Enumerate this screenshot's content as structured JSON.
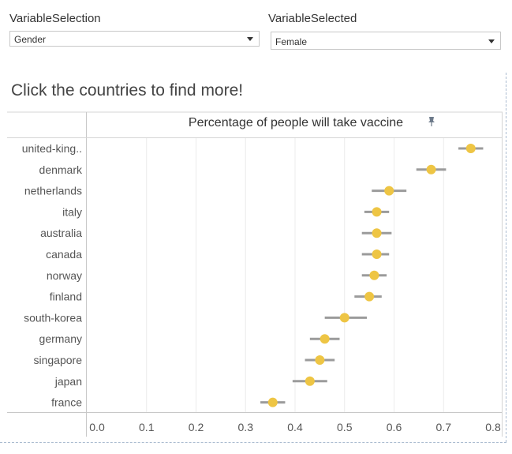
{
  "filters": {
    "variable_selection": {
      "label": "VariableSelection",
      "value": "Gender"
    },
    "variable_selected": {
      "label": "VariableSelected",
      "value": "Female"
    }
  },
  "subtitle": "Click the countries to find more!",
  "colors": {
    "point": "#eec544",
    "error_bar": "#9b9b9b",
    "grid": "#ececec",
    "axis": "#c8c8c8",
    "text": "#555555"
  },
  "icons": {
    "pin": "pin-icon",
    "dropdown": "chevron-down-icon"
  },
  "chart_data": {
    "type": "scatter",
    "title": "Percentage of people will take vaccine",
    "xlim": [
      0,
      0.8
    ],
    "x_ticks": [
      "0.0",
      "0.1",
      "0.2",
      "0.3",
      "0.4",
      "0.5",
      "0.6",
      "0.7",
      "0.8"
    ],
    "grid": true,
    "categories": [
      "united-king..",
      "denmark",
      "netherlands",
      "italy",
      "australia",
      "canada",
      "norway",
      "finland",
      "south-korea",
      "germany",
      "singapore",
      "japan",
      "france"
    ],
    "values": [
      0.755,
      0.675,
      0.59,
      0.565,
      0.565,
      0.565,
      0.56,
      0.55,
      0.5,
      0.46,
      0.45,
      0.43,
      0.355
    ],
    "error_low": [
      0.73,
      0.645,
      0.555,
      0.54,
      0.535,
      0.535,
      0.535,
      0.52,
      0.46,
      0.43,
      0.42,
      0.395,
      0.33
    ],
    "error_high": [
      0.78,
      0.705,
      0.625,
      0.59,
      0.595,
      0.59,
      0.585,
      0.575,
      0.545,
      0.49,
      0.48,
      0.465,
      0.38
    ]
  }
}
